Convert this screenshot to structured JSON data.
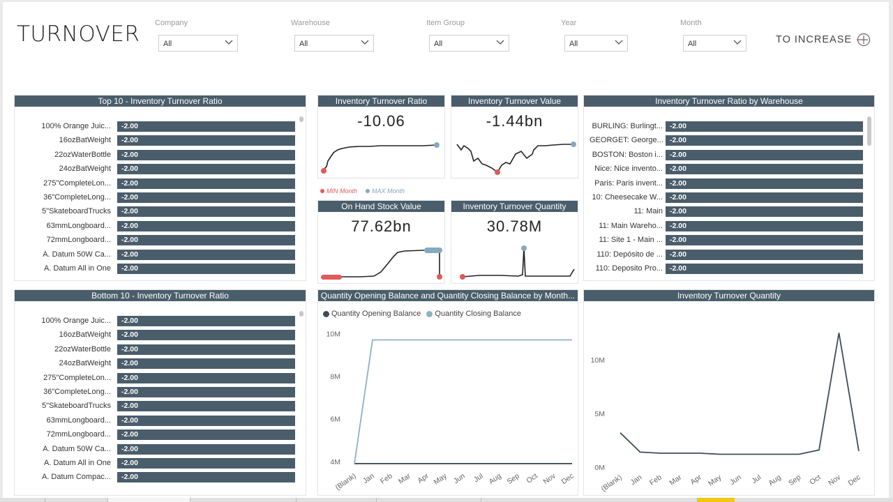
{
  "page": {
    "title": "TURNOVER"
  },
  "slicers": [
    {
      "label": "Company",
      "value": "All"
    },
    {
      "label": "Warehouse",
      "value": "All"
    },
    {
      "label": "Item Group",
      "value": "All"
    },
    {
      "label": "Year",
      "value": "All"
    },
    {
      "label": "Month",
      "value": "All"
    }
  ],
  "actions": {
    "to_increase": "TO INCREASE"
  },
  "colors": {
    "header": "#4a5d6b",
    "min": "#e05a5a",
    "max": "#87a9bd",
    "line": "#222222",
    "closing": "#8fb0c2",
    "opening": "#3c4d58"
  },
  "top10": {
    "title": "Top 10 - Inventory Turnover Ratio",
    "rows": [
      {
        "label": "100% Orange Juic...",
        "value": "-2.00"
      },
      {
        "label": "16ozBatWeight",
        "value": "-2.00"
      },
      {
        "label": "22ozWaterBottle",
        "value": "-2.00"
      },
      {
        "label": "24ozBatWeight",
        "value": "-2.00"
      },
      {
        "label": "275\"CompleteLon...",
        "value": "-2.00"
      },
      {
        "label": "36\"CompleteLong...",
        "value": "-2.00"
      },
      {
        "label": "5\"SkateboardTrucks",
        "value": "-2.00"
      },
      {
        "label": "63mmLongboard...",
        "value": "-2.00"
      },
      {
        "label": "72mmLongboard...",
        "value": "-2.00"
      },
      {
        "label": "A. Datum 50W Ca...",
        "value": "-2.00"
      },
      {
        "label": "A. Datum All in One",
        "value": "-2.00"
      }
    ]
  },
  "bottom10": {
    "title": "Bottom 10 - Inventory Turnover Ratio",
    "rows": [
      {
        "label": "100% Orange Juic...",
        "value": "-2.00"
      },
      {
        "label": "16ozBatWeight",
        "value": "-2.00"
      },
      {
        "label": "22ozWaterBottle",
        "value": "-2.00"
      },
      {
        "label": "24ozBatWeight",
        "value": "-2.00"
      },
      {
        "label": "275\"CompleteLon...",
        "value": "-2.00"
      },
      {
        "label": "36\"CompleteLong...",
        "value": "-2.00"
      },
      {
        "label": "5\"SkateboardTrucks",
        "value": "-2.00"
      },
      {
        "label": "63mmLongboard...",
        "value": "-2.00"
      },
      {
        "label": "72mmLongboard...",
        "value": "-2.00"
      },
      {
        "label": "A. Datum 50W Ca...",
        "value": "-2.00"
      },
      {
        "label": "A. Datum All in One",
        "value": "-2.00"
      },
      {
        "label": "A. Datum Compac...",
        "value": "-2.00"
      }
    ]
  },
  "by_warehouse": {
    "title": "Inventory Turnover Ratio by Warehouse",
    "rows": [
      {
        "label": "BURLING: Burlingt...",
        "value": "-2.00"
      },
      {
        "label": "GEORGET: George...",
        "value": "-2.00"
      },
      {
        "label": "BOSTON: Boston i...",
        "value": "-2.00"
      },
      {
        "label": "Nice: Nice invento...",
        "value": "-2.00"
      },
      {
        "label": "Paris: Paris invent...",
        "value": "-2.00"
      },
      {
        "label": "10: Cheesecake W...",
        "value": "-2.00"
      },
      {
        "label": "11: Main",
        "value": "-2.00"
      },
      {
        "label": "11: Main Wareho...",
        "value": "-2.00"
      },
      {
        "label": "11: Site 1 - Main ...",
        "value": "-2.00"
      },
      {
        "label": "110: Depósito de ...",
        "value": "-2.00"
      },
      {
        "label": "110: Deposito Pro...",
        "value": "-2.00"
      }
    ]
  },
  "kpis": {
    "ratio": {
      "title": "Inventory Turnover Ratio",
      "value": "-10.06"
    },
    "value": {
      "title": "Inventory Turnover Value",
      "value": "-1.44bn"
    },
    "onhand": {
      "title": "On Hand Stock Value",
      "value": "77.62bn"
    },
    "quantity": {
      "title": "Inventory Turnover Quantity",
      "value": "30.78M"
    },
    "legend": {
      "min": "MIN Month",
      "max": "MAX Month"
    }
  },
  "chart_data": [
    {
      "type": "line",
      "title": "Quantity Opening Balance and Quantity Closing Balance by Month...",
      "categories": [
        "(Blank)",
        "Jan",
        "Feb",
        "Mar",
        "Apr",
        "May",
        "Jun",
        "Jul",
        "Aug",
        "Sep",
        "Oct",
        "Nov",
        "Dec"
      ],
      "series": [
        {
          "name": "Quantity Opening Balance",
          "values": [
            3.9,
            3.9,
            3.9,
            3.9,
            3.9,
            3.9,
            3.9,
            3.9,
            3.9,
            3.9,
            3.9,
            3.9,
            3.9
          ]
        },
        {
          "name": "Quantity Closing Balance",
          "values": [
            3.9,
            9.7,
            9.7,
            9.7,
            9.7,
            9.7,
            9.7,
            9.7,
            9.7,
            9.7,
            9.7,
            9.7,
            9.7
          ]
        }
      ],
      "yticks": [
        "10M",
        "8M",
        "6M",
        "4M"
      ],
      "ytick_values": [
        10,
        8,
        6,
        4
      ],
      "ylim": [
        3.8,
        10.6
      ],
      "ylabel": "",
      "xlabel": ""
    },
    {
      "type": "line",
      "title": "Inventory Turnover Quantity",
      "categories": [
        "(Blank)",
        "Jan",
        "Feb",
        "Mar",
        "Apr",
        "May",
        "Jun",
        "Jul",
        "Aug",
        "Sep",
        "Oct",
        "Nov",
        "Dec"
      ],
      "series": [
        {
          "name": "Inventory Turnover Quantity",
          "values": [
            3.2,
            1.4,
            1.3,
            1.3,
            1.3,
            1.2,
            1.2,
            1.2,
            1.2,
            1.2,
            1.6,
            12.5,
            1.5
          ]
        }
      ],
      "yticks": [
        "10M",
        "5M",
        "0M"
      ],
      "ytick_values": [
        10,
        5,
        0
      ],
      "ylim": [
        0,
        13.5
      ],
      "ylabel": "",
      "xlabel": ""
    }
  ]
}
